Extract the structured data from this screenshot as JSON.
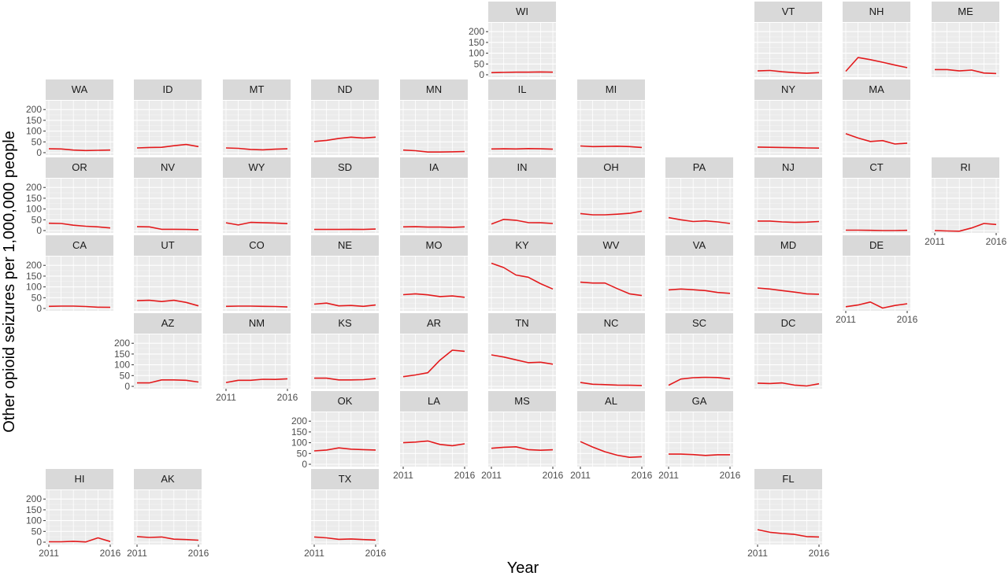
{
  "chart_data": {
    "type": "line",
    "layout": "state-grid facets",
    "xlabel": "Year",
    "ylabel": "Other opioid seizures per 1,000,000 people",
    "x": [
      2011,
      2012,
      2013,
      2014,
      2015,
      2016
    ],
    "xlim": [
      2011,
      2016
    ],
    "x_ticks": [
      "2011",
      "2016"
    ],
    "ylim": [
      0,
      230
    ],
    "y_ticks": [
      "0",
      "50",
      "100",
      "150",
      "200"
    ],
    "line_color": "#e31a1c",
    "panel_color": "#ebebeb",
    "strip_color": "#d9d9d9",
    "grid": true,
    "panels": [
      {
        "state": "WI",
        "values": [
          10,
          11,
          12,
          12,
          13,
          12
        ]
      },
      {
        "state": "VT",
        "values": [
          18,
          20,
          14,
          10,
          7,
          10
        ]
      },
      {
        "state": "NH",
        "values": [
          16,
          80,
          70,
          58,
          45,
          33
        ]
      },
      {
        "state": "ME",
        "values": [
          24,
          24,
          18,
          22,
          8,
          6
        ]
      },
      {
        "state": "WA",
        "values": [
          18,
          17,
          12,
          10,
          11,
          12
        ]
      },
      {
        "state": "ID",
        "values": [
          22,
          24,
          25,
          32,
          38,
          28
        ]
      },
      {
        "state": "MT",
        "values": [
          22,
          20,
          15,
          13,
          16,
          18
        ]
      },
      {
        "state": "ND",
        "values": [
          52,
          57,
          66,
          72,
          68,
          72
        ]
      },
      {
        "state": "MN",
        "values": [
          12,
          9,
          3,
          3,
          4,
          5
        ]
      },
      {
        "state": "IL",
        "values": [
          17,
          18,
          17,
          19,
          18,
          16
        ]
      },
      {
        "state": "MI",
        "values": [
          31,
          28,
          29,
          30,
          28,
          24
        ]
      },
      {
        "state": "NY",
        "values": [
          26,
          25,
          24,
          23,
          22,
          21
        ]
      },
      {
        "state": "MA",
        "values": [
          88,
          68,
          52,
          56,
          40,
          44
        ]
      },
      {
        "state": "OR",
        "values": [
          34,
          33,
          25,
          20,
          17,
          12
        ]
      },
      {
        "state": "NV",
        "values": [
          18,
          17,
          6,
          6,
          5,
          4
        ]
      },
      {
        "state": "WY",
        "values": [
          36,
          26,
          38,
          36,
          35,
          32
        ]
      },
      {
        "state": "SD",
        "values": [
          5,
          5,
          5,
          6,
          5,
          7
        ]
      },
      {
        "state": "IA",
        "values": [
          17,
          18,
          16,
          16,
          15,
          17
        ]
      },
      {
        "state": "IN",
        "values": [
          30,
          52,
          48,
          37,
          36,
          33
        ]
      },
      {
        "state": "OH",
        "values": [
          79,
          73,
          73,
          76,
          80,
          90
        ]
      },
      {
        "state": "PA",
        "values": [
          60,
          50,
          42,
          45,
          40,
          33
        ]
      },
      {
        "state": "NJ",
        "values": [
          44,
          44,
          40,
          38,
          39,
          42
        ]
      },
      {
        "state": "CT",
        "values": [
          2,
          2,
          1,
          0,
          0,
          1
        ]
      },
      {
        "state": "RI",
        "values": [
          0,
          -2,
          -3,
          12,
          33,
          28
        ]
      },
      {
        "state": "CA",
        "values": [
          10,
          11,
          11,
          9,
          6,
          5
        ]
      },
      {
        "state": "UT",
        "values": [
          36,
          38,
          32,
          38,
          28,
          12
        ]
      },
      {
        "state": "CO",
        "values": [
          10,
          11,
          11,
          10,
          9,
          7
        ]
      },
      {
        "state": "NE",
        "values": [
          20,
          25,
          12,
          14,
          10,
          16
        ]
      },
      {
        "state": "MO",
        "values": [
          64,
          68,
          63,
          55,
          58,
          52
        ]
      },
      {
        "state": "KY",
        "values": [
          210,
          190,
          155,
          145,
          115,
          90
        ]
      },
      {
        "state": "WV",
        "values": [
          122,
          118,
          118,
          92,
          68,
          60
        ]
      },
      {
        "state": "VA",
        "values": [
          86,
          90,
          87,
          83,
          74,
          70
        ]
      },
      {
        "state": "MD",
        "values": [
          95,
          90,
          83,
          76,
          68,
          66
        ]
      },
      {
        "state": "DE",
        "values": [
          8,
          16,
          30,
          2,
          14,
          22
        ]
      },
      {
        "state": "AZ",
        "values": [
          16,
          16,
          30,
          30,
          28,
          20
        ]
      },
      {
        "state": "NM",
        "values": [
          18,
          28,
          28,
          33,
          32,
          35
        ]
      },
      {
        "state": "KS",
        "values": [
          38,
          38,
          30,
          30,
          31,
          36
        ]
      },
      {
        "state": "AR",
        "values": [
          45,
          53,
          63,
          122,
          168,
          163
        ]
      },
      {
        "state": "TN",
        "values": [
          146,
          136,
          123,
          110,
          112,
          103
        ]
      },
      {
        "state": "NC",
        "values": [
          18,
          10,
          8,
          6,
          5,
          4
        ]
      },
      {
        "state": "SC",
        "values": [
          5,
          34,
          40,
          42,
          41,
          35
        ]
      },
      {
        "state": "DC",
        "values": [
          15,
          13,
          16,
          6,
          2,
          12
        ]
      },
      {
        "state": "OK",
        "values": [
          62,
          66,
          76,
          70,
          68,
          66
        ]
      },
      {
        "state": "LA",
        "values": [
          100,
          103,
          108,
          92,
          86,
          95
        ]
      },
      {
        "state": "MS",
        "values": [
          74,
          79,
          81,
          68,
          65,
          67
        ]
      },
      {
        "state": "AL",
        "values": [
          105,
          80,
          58,
          42,
          32,
          35
        ]
      },
      {
        "state": "GA",
        "values": [
          47,
          47,
          45,
          41,
          44,
          44
        ]
      },
      {
        "state": "HI",
        "values": [
          2,
          2,
          4,
          1,
          20,
          3
        ]
      },
      {
        "state": "AK",
        "values": [
          26,
          22,
          24,
          14,
          12,
          9
        ]
      },
      {
        "state": "TX",
        "values": [
          24,
          20,
          13,
          15,
          12,
          10
        ]
      },
      {
        "state": "FL",
        "values": [
          58,
          46,
          40,
          36,
          26,
          24
        ]
      }
    ]
  }
}
